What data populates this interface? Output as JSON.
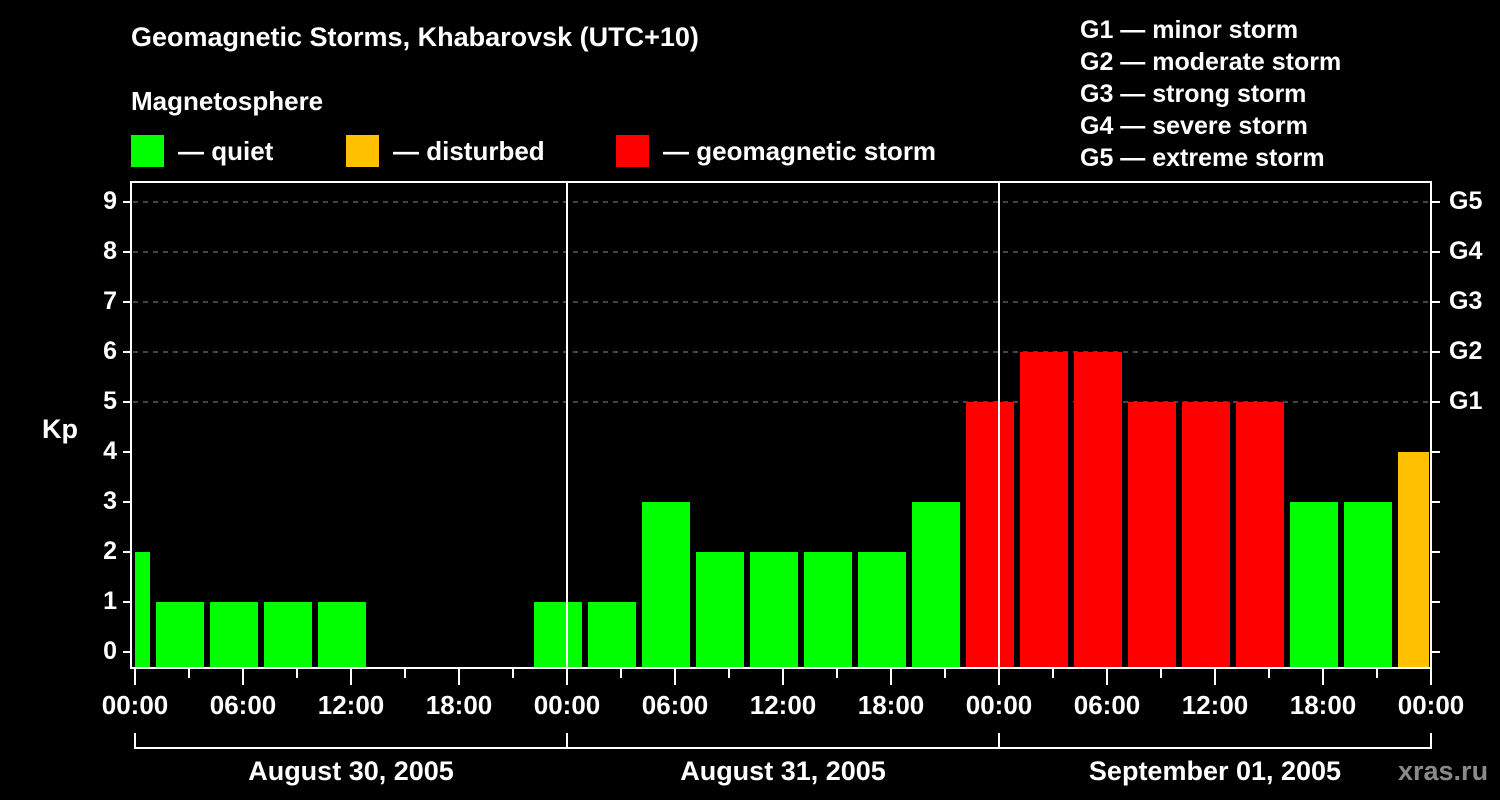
{
  "header": {
    "title": "Geomagnetic Storms, Khabarovsk (UTC+10)",
    "subtitle": "Magnetosphere"
  },
  "legend": [
    {
      "label": "— quiet",
      "color": "#00ff00"
    },
    {
      "label": "— disturbed",
      "color": "#ffc000"
    },
    {
      "label": "— geomagnetic storm",
      "color": "#ff0000"
    }
  ],
  "g_scale_legend": [
    "G1 — minor storm",
    "G2 — moderate storm",
    "G3 — strong storm",
    "G4 — severe storm",
    "G5 — extreme storm"
  ],
  "axes": {
    "ylabel": "Kp",
    "y_ticks": [
      "0",
      "1",
      "2",
      "3",
      "4",
      "5",
      "6",
      "7",
      "8",
      "9"
    ],
    "right_ticks": [
      "G1",
      "G2",
      "G3",
      "G4",
      "G5"
    ],
    "x_ticks": [
      "00:00",
      "06:00",
      "12:00",
      "18:00",
      "00:00",
      "06:00",
      "12:00",
      "18:00",
      "00:00",
      "06:00",
      "12:00",
      "18:00",
      "00:00"
    ],
    "days": [
      "August 30, 2005",
      "August 31, 2005",
      "September 01, 2005"
    ]
  },
  "watermark": "xras.ru",
  "chart_data": {
    "type": "bar",
    "title": "Geomagnetic Storms, Khabarovsk (UTC+10)",
    "subtitle": "Magnetosphere",
    "xlabel": "",
    "ylabel": "Kp",
    "ylim": [
      0,
      9
    ],
    "grid": "dashed horizontal at Kp 5-9",
    "interval_hours": 3,
    "x_range": [
      "August 30, 2005 00:00",
      "September 02, 2005 00:00"
    ],
    "categories": [
      "Aug30 ~00:00-01:00",
      "Aug30 01:00",
      "Aug30 04:00",
      "Aug30 07:00",
      "Aug30 10:00",
      "Aug30 13:00",
      "Aug30 16:00",
      "Aug30 19:00",
      "Aug30 22:00",
      "Aug31 01:00",
      "Aug31 04:00",
      "Aug31 07:00",
      "Aug31 10:00",
      "Aug31 13:00",
      "Aug31 16:00",
      "Aug31 19:00",
      "Aug31 22:00",
      "Sep01 01:00",
      "Sep01 04:00",
      "Sep01 07:00",
      "Sep01 10:00",
      "Sep01 13:00",
      "Sep01 16:00",
      "Sep01 19:00",
      "Sep01 22:00"
    ],
    "values": [
      2,
      1,
      1,
      1,
      1,
      null,
      null,
      null,
      1,
      1,
      3,
      2,
      2,
      2,
      2,
      3,
      5,
      6,
      6,
      5,
      5,
      5,
      3,
      3,
      4
    ],
    "status": [
      "quiet",
      "quiet",
      "quiet",
      "quiet",
      "quiet",
      null,
      null,
      null,
      "quiet",
      "quiet",
      "quiet",
      "quiet",
      "quiet",
      "quiet",
      "quiet",
      "quiet",
      "storm",
      "storm",
      "storm",
      "storm",
      "storm",
      "storm",
      "quiet",
      "quiet",
      "disturbed"
    ],
    "legend": [
      "quiet",
      "disturbed",
      "geomagnetic storm"
    ],
    "right_axis": {
      "G1": 5,
      "G2": 6,
      "G3": 7,
      "G4": 8,
      "G5": 9
    }
  }
}
